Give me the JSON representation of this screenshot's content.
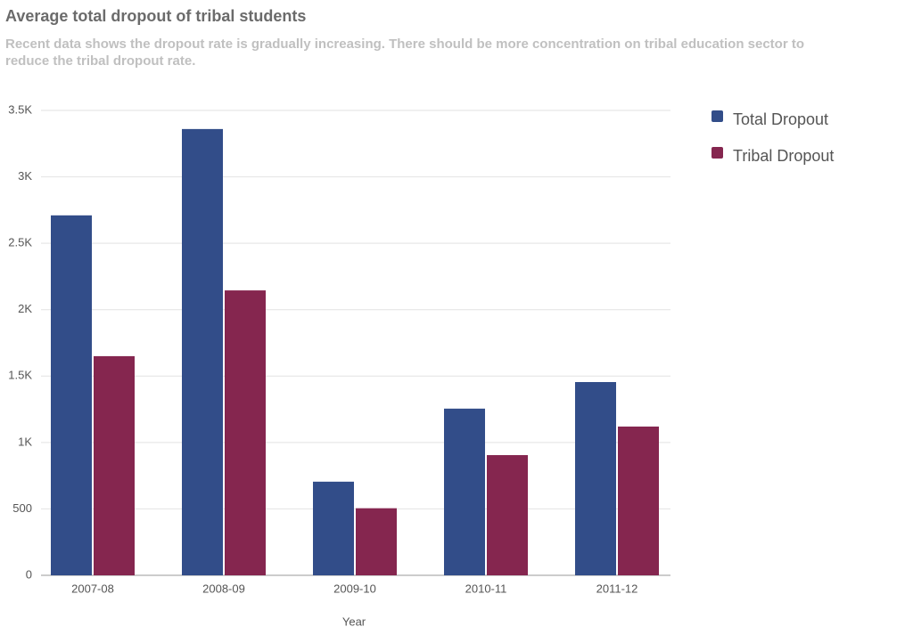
{
  "chart_data": {
    "type": "bar",
    "title": "Average total dropout of tribal students",
    "subtitle": "Recent data shows the dropout rate is gradually increasing. There should be more concentration on tribal education sector to reduce the tribal dropout rate.",
    "x_label": "Year",
    "categories": [
      "2007-08",
      "2008-09",
      "2009-10",
      "2010-11",
      "2011-12"
    ],
    "series": [
      {
        "name": "Total Dropout",
        "color": "#324d89",
        "values": [
          2710,
          3360,
          705,
          1255,
          1455
        ]
      },
      {
        "name": "Tribal Dropout",
        "color": "#85264f",
        "values": [
          1650,
          2145,
          505,
          905,
          1120
        ]
      }
    ],
    "ylim": [
      0,
      3500
    ],
    "yticks": [
      0,
      500,
      {
        "value": 1000,
        "label": "1K"
      },
      {
        "value": 1500,
        "label": "1.5K"
      },
      {
        "value": 2000,
        "label": "2K"
      },
      {
        "value": 2500,
        "label": "2.5K"
      },
      {
        "value": 3000,
        "label": "3K"
      },
      {
        "value": 3500,
        "label": "3.5K"
      }
    ],
    "grid": true,
    "legend": "right"
  }
}
